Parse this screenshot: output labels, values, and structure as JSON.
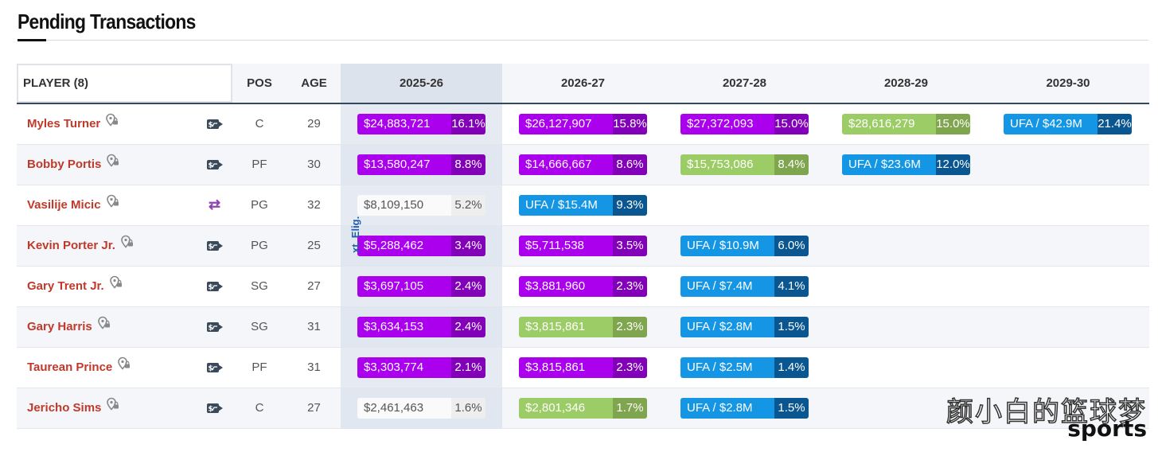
{
  "page": {
    "title": "Pending Transactions"
  },
  "table": {
    "headers": {
      "player": "PLAYER (8)",
      "pos": "POS",
      "age": "AGE",
      "seasons": [
        "2025-26",
        "2026-27",
        "2027-28",
        "2028-29",
        "2029-30"
      ]
    },
    "vertical_label": "xt. Elig.",
    "rows": [
      {
        "name": "Myles Turner",
        "icon": "trade-tag-icon",
        "pos": "C",
        "age": "29",
        "cells": [
          {
            "amt": "$24,883,721",
            "pct": "16.1%",
            "color": "purple"
          },
          {
            "amt": "$26,127,907",
            "pct": "15.8%",
            "color": "purple"
          },
          {
            "amt": "$27,372,093",
            "pct": "15.0%",
            "color": "purple"
          },
          {
            "amt": "$28,616,279",
            "pct": "15.0%",
            "color": "green"
          },
          {
            "amt": "UFA / $42.9M",
            "pct": "21.4%",
            "color": "blue"
          }
        ]
      },
      {
        "name": "Bobby Portis",
        "icon": "trade-tag-icon",
        "pos": "PF",
        "age": "30",
        "cells": [
          {
            "amt": "$13,580,247",
            "pct": "8.8%",
            "color": "purple"
          },
          {
            "amt": "$14,666,667",
            "pct": "8.6%",
            "color": "purple"
          },
          {
            "amt": "$15,753,086",
            "pct": "8.4%",
            "color": "green"
          },
          {
            "amt": "UFA / $23.6M",
            "pct": "12.0%",
            "color": "blue"
          }
        ]
      },
      {
        "name": "Vasilije Micic",
        "icon": "swap-arrows-icon",
        "pos": "PG",
        "age": "32",
        "cells": [
          {
            "amt": "$8,109,150",
            "pct": "5.2%",
            "color": "gray"
          },
          {
            "amt": "UFA / $15.4M",
            "pct": "9.3%",
            "color": "blue"
          }
        ]
      },
      {
        "name": "Kevin Porter Jr.",
        "icon": "trade-tag-icon",
        "pos": "PG",
        "age": "25",
        "cells": [
          {
            "amt": "$5,288,462",
            "pct": "3.4%",
            "color": "purple"
          },
          {
            "amt": "$5,711,538",
            "pct": "3.5%",
            "color": "purple"
          },
          {
            "amt": "UFA / $10.9M",
            "pct": "6.0%",
            "color": "blue"
          }
        ]
      },
      {
        "name": "Gary Trent Jr.",
        "icon": "trade-tag-icon",
        "pos": "SG",
        "age": "27",
        "cells": [
          {
            "amt": "$3,697,105",
            "pct": "2.4%",
            "color": "purple"
          },
          {
            "amt": "$3,881,960",
            "pct": "2.3%",
            "color": "purple"
          },
          {
            "amt": "UFA / $7.4M",
            "pct": "4.1%",
            "color": "blue"
          }
        ]
      },
      {
        "name": "Gary Harris",
        "icon": "trade-tag-icon",
        "pos": "SG",
        "age": "31",
        "cells": [
          {
            "amt": "$3,634,153",
            "pct": "2.4%",
            "color": "purple"
          },
          {
            "amt": "$3,815,861",
            "pct": "2.3%",
            "color": "green"
          },
          {
            "amt": "UFA / $2.8M",
            "pct": "1.5%",
            "color": "blue"
          }
        ]
      },
      {
        "name": "Taurean Prince",
        "icon": "trade-tag-icon",
        "pos": "PF",
        "age": "31",
        "cells": [
          {
            "amt": "$3,303,774",
            "pct": "2.1%",
            "color": "purple"
          },
          {
            "amt": "$3,815,861",
            "pct": "2.3%",
            "color": "purple"
          },
          {
            "amt": "UFA / $2.5M",
            "pct": "1.4%",
            "color": "blue"
          }
        ]
      },
      {
        "name": "Jericho Sims",
        "icon": "trade-tag-icon",
        "pos": "C",
        "age": "27",
        "cells": [
          {
            "amt": "$2,461,463",
            "pct": "1.6%",
            "color": "gray"
          },
          {
            "amt": "$2,801,346",
            "pct": "1.7%",
            "color": "green"
          },
          {
            "amt": "UFA / $2.8M",
            "pct": "1.5%",
            "color": "blue"
          }
        ]
      }
    ]
  },
  "colors": {
    "purple": "#aa00ee",
    "green": "#9ccc65",
    "blue": "#1496e4",
    "player_name": "#c0392b",
    "header_rule": "#34495e"
  },
  "watermark": {
    "cn": "颜小白的篮球梦",
    "en": "sports"
  }
}
